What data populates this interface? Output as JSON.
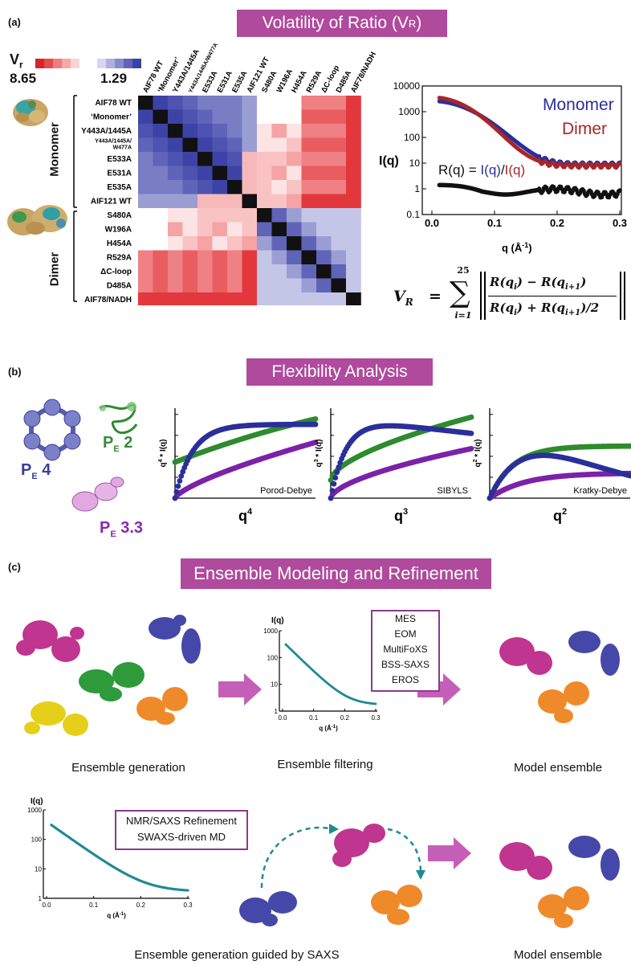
{
  "panel_a": {
    "label": "(a)",
    "title": "Volatility of Ratio (V",
    "title_sub": "R",
    "title_close": ")",
    "scale": {
      "symbol": "V",
      "symbol_sub": "r",
      "max": "8.65",
      "min": "1.29"
    },
    "groups": [
      "Monomer",
      "Dimer"
    ],
    "rows": [
      "AIF78 WT",
      "‘Monomer’",
      "Y443A/1445A",
      "Y443A/1445A/",
      "W477A",
      "E533A",
      "E531A",
      "E535A",
      "AIF121 WT",
      "S480A",
      "W196A",
      "H454A",
      "R529A",
      "ΔC-loop",
      "D485A",
      "AIF78/NADH"
    ],
    "cols": [
      "AIF78 WT",
      "‘Monomer’",
      "Y443A/1445A",
      "Y443A/1445A/W477A",
      "E533A",
      "E531A",
      "E535A",
      "AIF121 WT",
      "S480A",
      "W196A",
      "H454A",
      "R529A",
      "ΔC-loop",
      "D485A",
      "AIF78/NADH"
    ],
    "plot": {
      "ylabel": "I(q)",
      "xlabel": "q (Å",
      "xlabel_sup": "-1",
      "xlabel_close": ")",
      "x_ticks": [
        "0.0",
        "0.1",
        "0.2",
        "0.3"
      ],
      "y_ticks": [
        "10000",
        "1000",
        "100",
        "10",
        "1",
        "0.1"
      ],
      "legend_monomer": "Monomer",
      "legend_dimer": "Dimer",
      "ratio_a": "R(q) = ",
      "ratio_b": "I(q)",
      "ratio_c": "/",
      "ratio_d": "I(q)"
    },
    "formula": {
      "lhs": "V",
      "lhs_sub": "R",
      "eq": "=",
      "sum_top": "25",
      "sum_bottom": "i=1",
      "numerator": "R(q",
      "numerator_b": ") − R(q",
      "numerator_c": ")",
      "denominator": "R(q",
      "denominator_b": ") + R(q",
      "denominator_c": ")/2"
    }
  },
  "panel_b": {
    "label": "(b)",
    "title": "Flexibility Analysis",
    "models": [
      {
        "letter": "P",
        "sub": "E",
        "value": "4",
        "color": "#3a3f9a"
      },
      {
        "letter": "P",
        "sub": "E",
        "value": "2",
        "color": "#3a8a3a"
      },
      {
        "letter": "P",
        "sub": "E",
        "value": "3.3",
        "color": "#8a2aa8"
      }
    ],
    "plots": [
      {
        "name": "Porod-Debye",
        "ylabel": "q",
        "ylabel_sup": "4",
        "ylabel_rest": " * I(q)",
        "xlabel": "q",
        "xlabel_sup": "4"
      },
      {
        "name": "SIBYLS",
        "ylabel": "q",
        "ylabel_sup": "3",
        "ylabel_rest": " * I(q)",
        "xlabel": "q",
        "xlabel_sup": "3"
      },
      {
        "name": "Kratky-Debye",
        "ylabel": "q",
        "ylabel_sup": "2",
        "ylabel_rest": " * I(q)",
        "xlabel": "q",
        "xlabel_sup": "2"
      }
    ]
  },
  "panel_c": {
    "label": "(c)",
    "title": "Ensemble Modeling and Refinement",
    "methods": [
      "MES",
      "EOM",
      "MultiFoXS",
      "BSS-SAXS",
      "EROS"
    ],
    "refinement": [
      "NMR/SAXS Refinement",
      "SWAXS-driven MD"
    ],
    "captions": {
      "generation": "Ensemble generation",
      "filtering": "Ensemble filtering",
      "model1": "Model ensemble",
      "guided": "Ensemble generation guided by SAXS",
      "model2": "Model ensemble"
    },
    "plot": {
      "ylabel": "I(q)",
      "xlabel": "q (Å",
      "xlabel_sup": "-1",
      "xlabel_close": ")",
      "y_ticks": [
        "1000",
        "100",
        "10",
        "1"
      ],
      "x_ticks": [
        "0.0",
        "0.1",
        "0.2",
        "0.3"
      ]
    }
  },
  "colors": {
    "banner": "#b04a9d",
    "monomer": "#2a2f9a",
    "dimer": "#a8262a",
    "green": "#2e8b2e",
    "purple": "#7a22a8",
    "teal": "#1f8a94",
    "magenta": "#c0358f",
    "orange": "#ef8a2a",
    "yellow": "#e6cf1a"
  }
}
